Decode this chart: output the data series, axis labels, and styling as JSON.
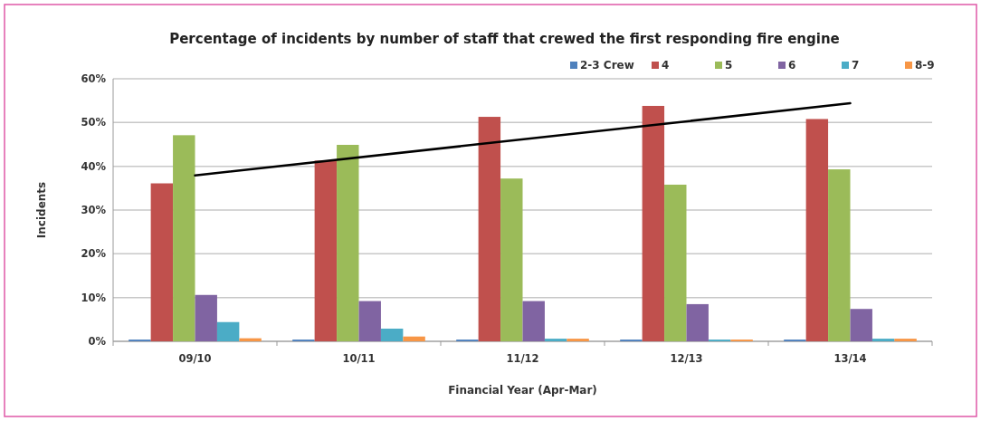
{
  "chart_data": {
    "type": "bar",
    "title": "Percentage of incidents by number of staff that crewed the first responding fire engine",
    "xlabel": "Financial Year (Apr-Mar)",
    "ylabel": "Incidents",
    "categories": [
      "09/10",
      "10/11",
      "11/12",
      "12/13",
      "13/14"
    ],
    "series": [
      {
        "name": "2-3 Crew",
        "color": "#4f81bd",
        "values": [
          0.4,
          0.4,
          0.4,
          0.4,
          0.4
        ]
      },
      {
        "name": "4",
        "color": "#c0504d",
        "values": [
          36.1,
          41.3,
          51.3,
          53.8,
          50.8
        ]
      },
      {
        "name": "5",
        "color": "#9bbb59",
        "values": [
          47.1,
          44.9,
          37.2,
          35.8,
          39.3
        ]
      },
      {
        "name": "6",
        "color": "#8064a2",
        "values": [
          10.6,
          9.2,
          9.2,
          8.5,
          7.4
        ]
      },
      {
        "name": "7",
        "color": "#4bacc6",
        "values": [
          4.4,
          2.9,
          0.6,
          0.4,
          0.6
        ]
      },
      {
        "name": "8-9",
        "color": "#f79646",
        "values": [
          0.7,
          1.1,
          0.6,
          0.4,
          0.6
        ]
      },
      {
        "type": "line",
        "color": "#000000",
        "x": [
          "09/10",
          "13/14"
        ],
        "values": [
          37.9,
          54.4
        ]
      }
    ],
    "ylim": [
      0,
      60
    ],
    "yticks": [
      {
        "value": 0,
        "label": "0%"
      },
      {
        "value": 10,
        "label": "10%"
      },
      {
        "value": 20,
        "label": "20%"
      },
      {
        "value": 30,
        "label": "30%"
      },
      {
        "value": 40,
        "label": "40%"
      },
      {
        "value": 50,
        "label": "50%"
      },
      {
        "value": 60,
        "label": "60%"
      }
    ],
    "grid": "y",
    "legend": "top right"
  }
}
